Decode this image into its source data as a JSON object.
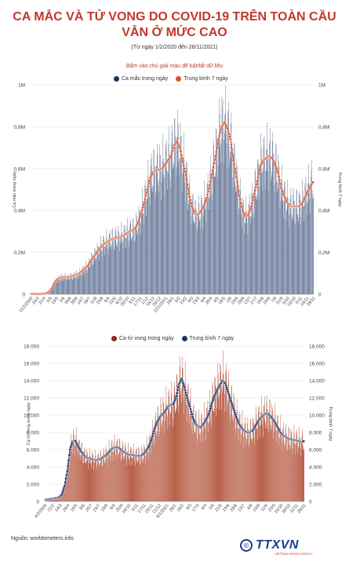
{
  "header": {
    "title_line1": "CA MẮC VÀ TỬ VONG DO COVID-19 TRÊN TOÀN CẦU",
    "title_line2": "VẪN Ở MỨC CAO",
    "subtitle": "(Từ ngày 1/2/2020 đến 28/11/2021)",
    "hint": "Bấm vào chú giải màu để bật/tắt dữ liệu"
  },
  "footer": {
    "source": "Nguồn: worldometers.info",
    "logo_text": "TTXVN",
    "logo_sub": "VIETNAM NEWS AGENCY"
  },
  "colors": {
    "cases_bar": "#6f7f9e",
    "cases_line": "#d9532b",
    "deaths_bar": "#b9614a",
    "deaths_line": "#1d3266",
    "title": "#c0392b"
  },
  "chart_data": [
    {
      "type": "bar",
      "series": [
        {
          "name": "Ca mắc trong ngày",
          "kind": "bar"
        },
        {
          "name": "Trung bình 7 ngày",
          "kind": "line"
        }
      ],
      "ylabel": "Ca mắc trong ngày",
      "y2label": "Trung bình 7 ngày",
      "ylim": [
        0,
        1000000
      ],
      "yticks": [
        "0",
        "0,2M",
        "0,4M",
        "0,6M",
        "0,8M",
        "1M"
      ],
      "x_tick_labels": [
        "11/2/2020",
        "25/2",
        "10/3",
        "24/3",
        "7/4",
        "21/4",
        "5/5",
        "19/5",
        "2/6",
        "16/6",
        "30/6",
        "14/7",
        "28/7",
        "11/8",
        "25/8",
        "8/9",
        "22/9",
        "6/10",
        "20/10",
        "3/11",
        "17/11",
        "1/12",
        "15/12",
        "29/12",
        "12/1/2021",
        "26/1",
        "9/2",
        "23/2",
        "9/3",
        "23/3",
        "6/4",
        "20/4",
        "4/5",
        "18/5",
        "1/6",
        "15/6",
        "29/6",
        "13/7",
        "27/7",
        "10/8",
        "24/8",
        "7/9",
        "21/9",
        "5/10",
        "19/10",
        "2/11",
        "16/11",
        "28/11"
      ],
      "x_tick_labels_visible": [
        "11/2/2020",
        "24/3",
        "21/4",
        "5/5",
        "19/5",
        "2/6",
        "16/6",
        "30/6",
        "14/7",
        "28/7",
        "11/8",
        "25/8",
        "8/9",
        "22/9",
        "6/10",
        "20/10",
        "3/11",
        "17/11",
        "1/12",
        "15/12",
        "29/12",
        "12/1/2021",
        "26/1",
        "9/2",
        "23/2",
        "9/3",
        "23/3",
        "6/4",
        "20/4",
        "4/5",
        "18/5",
        "1/6",
        "15/6",
        "29/6",
        "13/7",
        "27/7",
        "10/8",
        "24/8",
        "7/9",
        "21/9",
        "5/10",
        "19/10",
        "2/11",
        "16/11",
        "28/11"
      ],
      "weekly_dates": [
        "2/2020",
        "9/2",
        "16/2",
        "23/2",
        "1/3",
        "8/3",
        "15/3",
        "22/3",
        "29/3",
        "5/4",
        "12/4",
        "19/4",
        "26/4",
        "3/5",
        "10/5",
        "17/5",
        "24/5",
        "31/5",
        "7/6",
        "14/6",
        "21/6",
        "28/6",
        "5/7",
        "12/7",
        "19/7",
        "26/7",
        "2/8",
        "9/8",
        "16/8",
        "23/8",
        "30/8",
        "6/9",
        "13/9",
        "20/9",
        "27/9",
        "4/10",
        "11/10",
        "18/10",
        "25/10",
        "1/11",
        "8/11",
        "15/11",
        "22/11",
        "29/11",
        "6/12",
        "13/12",
        "20/12",
        "27/12",
        "3/1/2021",
        "10/1",
        "17/1",
        "24/1",
        "31/1",
        "7/2",
        "14/2",
        "21/2",
        "28/2",
        "7/3",
        "14/3",
        "21/3",
        "28/3",
        "4/4",
        "11/4",
        "18/4",
        "25/4",
        "2/5",
        "9/5",
        "16/5",
        "23/5",
        "30/5",
        "6/6",
        "13/6",
        "20/6",
        "27/6",
        "4/7",
        "11/7",
        "18/7",
        "25/7",
        "1/8",
        "8/8",
        "15/8",
        "22/8",
        "29/8",
        "5/9",
        "12/9",
        "19/9",
        "26/9",
        "3/10",
        "10/10",
        "17/10",
        "24/10",
        "31/10",
        "7/11",
        "14/11",
        "21/11",
        "28/11"
      ],
      "weekly_avg": [
        2000,
        2000,
        1500,
        1500,
        3000,
        4000,
        13000,
        30000,
        60000,
        75000,
        80000,
        82000,
        81000,
        83000,
        88000,
        92000,
        98000,
        110000,
        125000,
        135000,
        160000,
        180000,
        200000,
        220000,
        235000,
        245000,
        255000,
        262000,
        265000,
        270000,
        275000,
        280000,
        290000,
        300000,
        305000,
        315000,
        345000,
        390000,
        440000,
        500000,
        555000,
        585000,
        590000,
        595000,
        600000,
        620000,
        640000,
        660000,
        710000,
        730000,
        700000,
        630000,
        570000,
        480000,
        420000,
        385000,
        380000,
        395000,
        420000,
        460000,
        520000,
        590000,
        660000,
        740000,
        800000,
        820000,
        790000,
        740000,
        640000,
        560000,
        470000,
        400000,
        370000,
        380000,
        420000,
        480000,
        540000,
        610000,
        640000,
        650000,
        660000,
        650000,
        620000,
        580000,
        510000,
        470000,
        440000,
        420000,
        420000,
        420000,
        420000,
        430000,
        460000,
        490000,
        520000,
        540000
      ]
    },
    {
      "type": "bar",
      "series": [
        {
          "name": "Ca tử vong trong ngày",
          "kind": "bar"
        },
        {
          "name": "Trung bình 7 ngày",
          "kind": "line"
        }
      ],
      "ylabel": "Ca tử vong trong ngày",
      "y2label": "Trung bình 7 ngày",
      "ylim": [
        0,
        18000
      ],
      "yticks": [
        "0",
        "2.000",
        "4.000",
        "6.000",
        "8.000",
        "10.000",
        "12.000",
        "14.000",
        "16.000",
        "18.000"
      ],
      "x_tick_labels": [
        "4/2/2020",
        "18/2",
        "3/3",
        "17/3",
        "31/3",
        "14/4",
        "28/4",
        "12/5",
        "26/5",
        "9/6",
        "23/6",
        "7/7",
        "21/7",
        "4/8",
        "18/8",
        "1/9",
        "15/9",
        "29/9",
        "13/10",
        "27/10",
        "10/11",
        "24/11",
        "8/12",
        "22/12",
        "5/1/2021",
        "19/1",
        "2/2",
        "16/2",
        "2/3",
        "16/3",
        "30/3",
        "13/4",
        "27/4",
        "11/5",
        "25/5",
        "8/6",
        "22/6",
        "6/7",
        "20/7",
        "3/8",
        "17/8",
        "31/8",
        "14/9",
        "28/9",
        "12/10",
        "26/10",
        "9/11",
        "23/11"
      ],
      "x_tick_labels_visible": [
        "4/2/2020",
        "21/2",
        "24/3",
        "26/4",
        "16/5",
        "8/6",
        "25/7",
        "29/7",
        "18/8",
        "8/9",
        "25/9",
        "16/10",
        "3/11",
        "17/11",
        "29/11",
        "21/12",
        "6/1/2021",
        "26/1",
        "16/2",
        "8/3",
        "17/3",
        "6/4",
        "2/5",
        "21/5",
        "19/6",
        "28/6",
        "13/7",
        "4/8",
        "24/8",
        "11/9",
        "23/9",
        "15/10",
        "30/10",
        "11/11",
        "28/11"
      ],
      "weekly_dates": [
        "2/2020",
        "9/2",
        "16/2",
        "23/2",
        "1/3",
        "8/3",
        "15/3",
        "22/3",
        "29/3",
        "5/4",
        "12/4",
        "19/4",
        "26/4",
        "3/5",
        "10/5",
        "17/5",
        "24/5",
        "31/5",
        "7/6",
        "14/6",
        "21/6",
        "28/6",
        "5/7",
        "12/7",
        "19/7",
        "26/7",
        "2/8",
        "9/8",
        "16/8",
        "23/8",
        "30/8",
        "6/9",
        "13/9",
        "20/9",
        "27/9",
        "4/10",
        "11/10",
        "18/10",
        "25/10",
        "1/11",
        "8/11",
        "15/11",
        "22/11",
        "29/11",
        "6/12",
        "13/12",
        "20/12",
        "27/12",
        "3/1/2021",
        "10/1",
        "17/1",
        "24/1",
        "31/1",
        "7/2",
        "14/2",
        "21/2",
        "28/2",
        "7/3",
        "14/3",
        "21/3",
        "28/3",
        "4/4",
        "11/4",
        "18/4",
        "25/4",
        "2/5",
        "9/5",
        "16/5",
        "23/5",
        "30/5",
        "6/6",
        "13/6",
        "20/6",
        "27/6",
        "4/7",
        "11/7",
        "18/7",
        "25/7",
        "1/8",
        "8/8",
        "15/8",
        "22/8",
        "29/8",
        "5/9",
        "12/9",
        "19/9",
        "26/9",
        "3/10",
        "10/10",
        "17/10",
        "24/10",
        "31/10",
        "7/11",
        "14/11",
        "21/11",
        "28/11"
      ],
      "weekly_avg": [
        200,
        250,
        300,
        350,
        400,
        500,
        800,
        1800,
        3500,
        6000,
        7000,
        7000,
        6400,
        5800,
        5400,
        5100,
        5000,
        4900,
        4800,
        4800,
        4900,
        5100,
        5300,
        5600,
        6000,
        6200,
        6300,
        6200,
        5900,
        5700,
        5500,
        5400,
        5400,
        5300,
        5300,
        5300,
        5500,
        5900,
        6400,
        7300,
        8400,
        9200,
        9800,
        10100,
        10500,
        11000,
        11200,
        11300,
        12200,
        13600,
        14200,
        13200,
        12000,
        11000,
        9800,
        9000,
        8700,
        8600,
        9000,
        9500,
        10200,
        11300,
        12200,
        12900,
        13500,
        14000,
        13700,
        12700,
        11700,
        10800,
        9800,
        9000,
        8500,
        8200,
        8000,
        8000,
        8200,
        8700,
        9300,
        9700,
        10000,
        10200,
        10100,
        9700,
        9300,
        8700,
        8100,
        7700,
        7500,
        7300,
        7200,
        7100,
        7100,
        7000,
        6900,
        7000
      ]
    }
  ]
}
